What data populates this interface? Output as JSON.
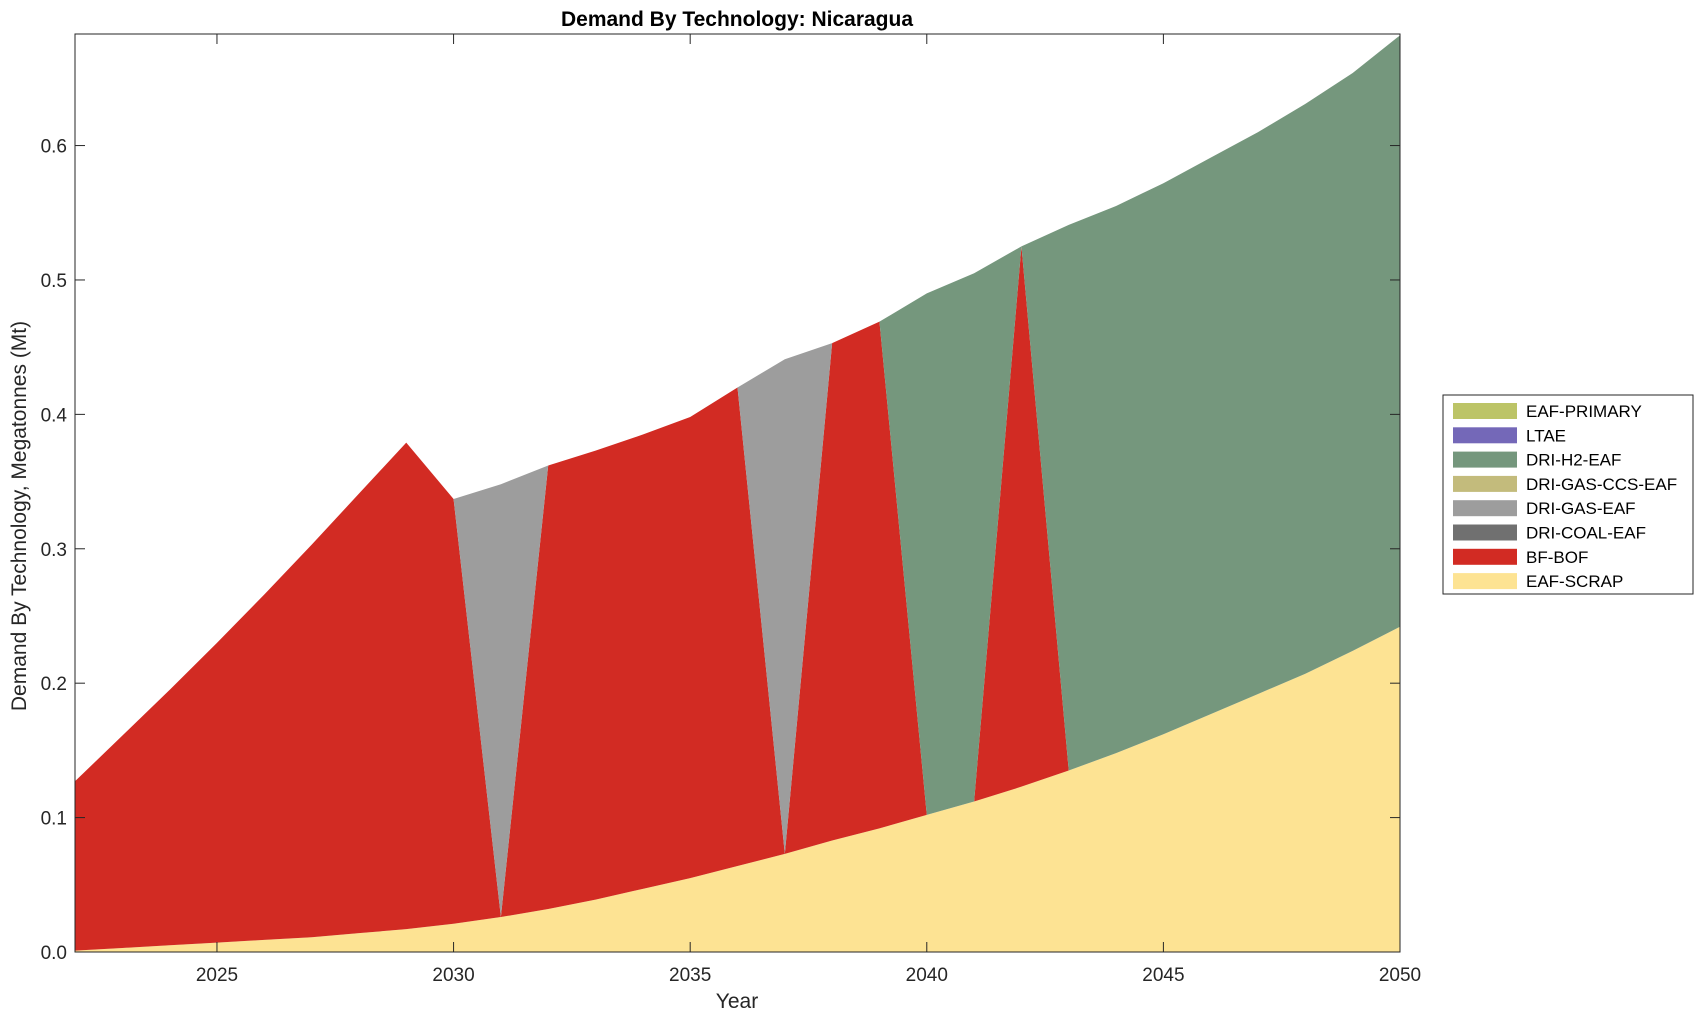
{
  "chart_data": {
    "type": "area",
    "title": "Demand By Technology: Nicaragua",
    "xlabel": "Year",
    "ylabel": "Demand By Technology, Megatonnes (Mt)",
    "xlim": [
      2022,
      2050
    ],
    "ylim": [
      0,
      0.683
    ],
    "xticks": [
      2025,
      2030,
      2035,
      2040,
      2045,
      2050
    ],
    "yticks": [
      "0.0",
      "0.1",
      "0.2",
      "0.3",
      "0.4",
      "0.5",
      "0.6"
    ],
    "legend_position": "right",
    "x": [
      2022,
      2023,
      2024,
      2025,
      2026,
      2027,
      2028,
      2029,
      2030,
      2031,
      2032,
      2033,
      2034,
      2035,
      2036,
      2037,
      2038,
      2039,
      2040,
      2041,
      2042,
      2043,
      2044,
      2045,
      2046,
      2047,
      2048,
      2049,
      2050
    ],
    "series": [
      {
        "name": "EAF-SCRAP",
        "color": "#FDE393",
        "values": [
          0.001,
          0.003,
          0.005,
          0.007,
          0.009,
          0.011,
          0.014,
          0.017,
          0.021,
          0.026,
          0.032,
          0.039,
          0.047,
          0.055,
          0.064,
          0.073,
          0.083,
          0.092,
          0.102,
          0.112,
          0.123,
          0.135,
          0.148,
          0.162,
          0.177,
          0.192,
          0.207,
          0.224,
          0.242
        ]
      },
      {
        "name": "BF-BOF",
        "color": "#D22B23",
        "values": [
          0.126,
          0.158,
          0.19,
          0.223,
          0.257,
          0.292,
          0.327,
          0.362,
          0.316,
          0,
          0.33,
          0.334,
          0.338,
          0.343,
          0.356,
          0,
          0.37,
          0.377,
          0,
          0,
          0.402,
          0,
          0,
          0,
          0,
          0,
          0,
          0,
          0
        ]
      },
      {
        "name": "DRI-COAL-EAF",
        "color": "#707070",
        "values": [
          0,
          0,
          0,
          0,
          0,
          0,
          0,
          0,
          0,
          0,
          0,
          0,
          0,
          0,
          0,
          0,
          0,
          0,
          0,
          0,
          0,
          0,
          0,
          0,
          0,
          0,
          0,
          0,
          0
        ]
      },
      {
        "name": "DRI-GAS-EAF",
        "color": "#9D9D9D",
        "values": [
          0,
          0,
          0,
          0,
          0,
          0,
          0,
          0,
          0,
          0.322,
          0,
          0,
          0,
          0,
          0,
          0.368,
          0,
          0,
          0,
          0,
          0,
          0,
          0,
          0,
          0,
          0,
          0,
          0,
          0
        ]
      },
      {
        "name": "DRI-GAS-CCS-EAF",
        "color": "#C3BB7C",
        "values": [
          0,
          0,
          0,
          0,
          0,
          0,
          0,
          0,
          0,
          0,
          0,
          0,
          0,
          0,
          0,
          0,
          0,
          0,
          0,
          0,
          0,
          0,
          0,
          0,
          0,
          0,
          0,
          0,
          0
        ]
      },
      {
        "name": "DRI-H2-EAF",
        "color": "#75977D",
        "values": [
          0,
          0,
          0,
          0,
          0,
          0,
          0,
          0,
          0,
          0,
          0,
          0,
          0,
          0,
          0,
          0,
          0,
          0,
          0.388,
          0.393,
          0,
          0.406,
          0.407,
          0.41,
          0.414,
          0.418,
          0.424,
          0.43,
          0.44
        ]
      },
      {
        "name": "LTAE",
        "color": "#7468B8",
        "values": [
          0,
          0,
          0,
          0,
          0,
          0,
          0,
          0,
          0,
          0,
          0,
          0,
          0,
          0,
          0,
          0,
          0,
          0,
          0,
          0,
          0,
          0,
          0,
          0,
          0,
          0,
          0,
          0,
          0
        ]
      },
      {
        "name": "EAF-PRIMARY",
        "color": "#BCC467",
        "values": [
          0,
          0,
          0,
          0,
          0,
          0,
          0,
          0,
          0,
          0,
          0,
          0,
          0,
          0,
          0,
          0,
          0,
          0,
          0,
          0,
          0,
          0,
          0,
          0,
          0,
          0,
          0,
          0,
          0
        ]
      }
    ],
    "legend_order": [
      "EAF-PRIMARY",
      "LTAE",
      "DRI-H2-EAF",
      "DRI-GAS-CCS-EAF",
      "DRI-GAS-EAF",
      "DRI-COAL-EAF",
      "BF-BOF",
      "EAF-SCRAP"
    ]
  }
}
